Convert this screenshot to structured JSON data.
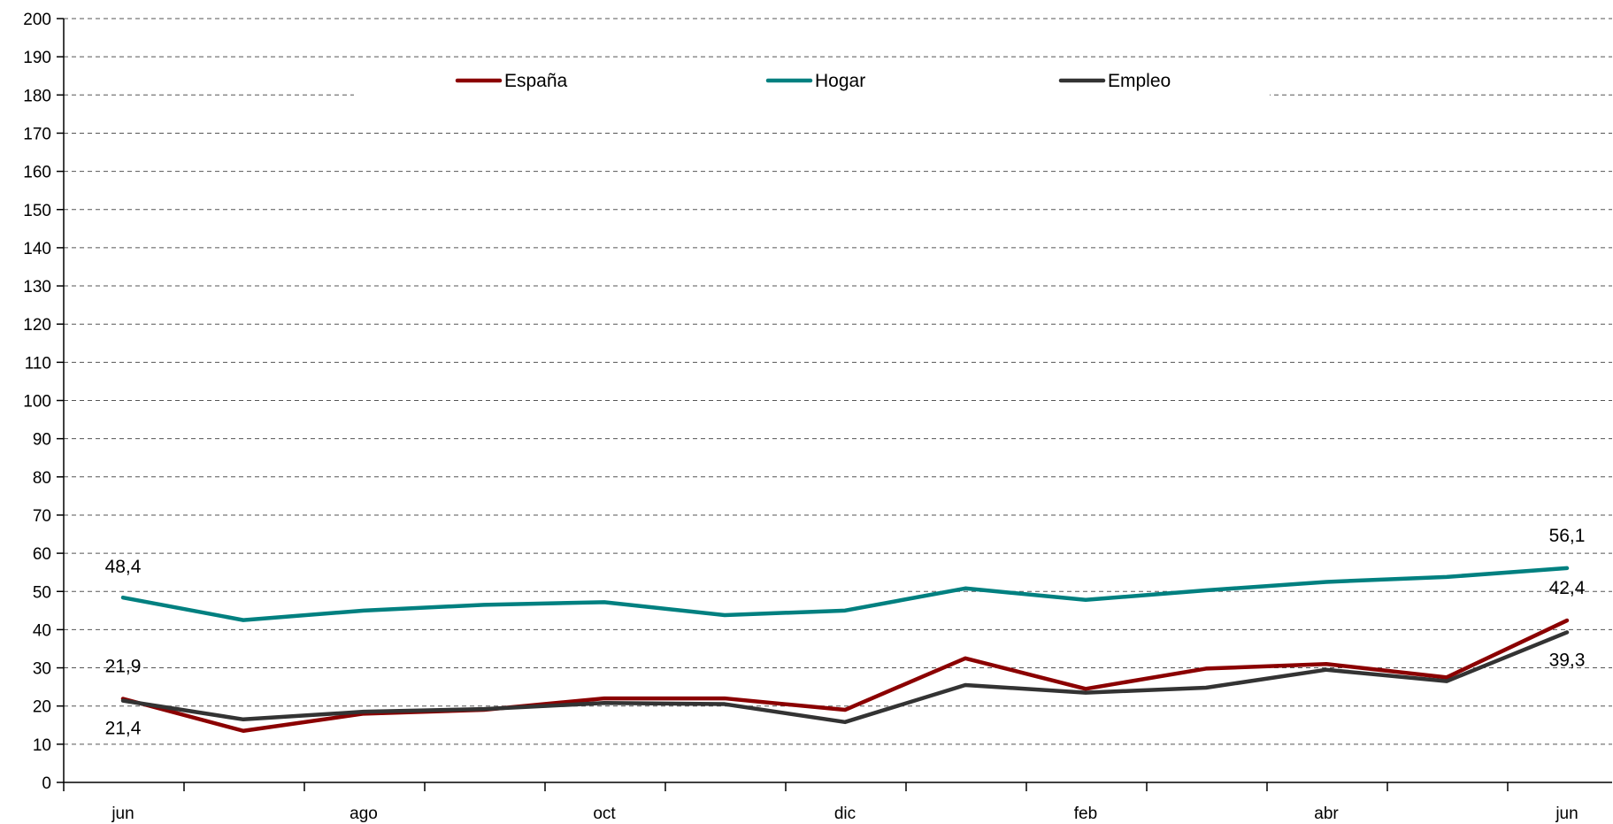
{
  "chart_data": {
    "type": "line",
    "title": "",
    "xlabel": "",
    "ylabel": "",
    "ylim": [
      0,
      200
    ],
    "yticks": [
      0,
      10,
      20,
      30,
      40,
      50,
      60,
      70,
      80,
      90,
      100,
      110,
      120,
      130,
      140,
      150,
      160,
      170,
      180,
      190,
      200
    ],
    "grid": true,
    "legend_position": "top",
    "x_tick_labels": [
      "jun",
      "",
      "ago",
      "",
      "oct",
      "",
      "dic",
      "",
      "feb",
      "",
      "abr",
      "",
      "jun"
    ],
    "series": [
      {
        "name": "España",
        "color": "#8b0000",
        "values": [
          21.9,
          13.5,
          18.0,
          19.0,
          22.0,
          22.0,
          19.0,
          32.5,
          24.5,
          29.8,
          31.0,
          27.5,
          42.4
        ]
      },
      {
        "name": "Hogar",
        "color": "#008080",
        "values": [
          48.4,
          42.5,
          45.0,
          46.5,
          47.2,
          43.8,
          45.0,
          50.8,
          47.8,
          50.3,
          52.5,
          53.8,
          56.1
        ]
      },
      {
        "name": "Empleo",
        "color": "#333333",
        "values": [
          21.4,
          16.5,
          18.5,
          19.2,
          20.8,
          20.5,
          15.8,
          25.5,
          23.5,
          24.8,
          29.5,
          26.5,
          39.3
        ]
      }
    ],
    "annotations": [
      {
        "text": "48,4",
        "x": 0,
        "y": 48.4,
        "series": "Hogar"
      },
      {
        "text": "21,9",
        "x": 0,
        "y": 21.9,
        "series": "España"
      },
      {
        "text": "21,4",
        "x": 0,
        "y": 21.4,
        "series": "Empleo"
      },
      {
        "text": "56,1",
        "x": 12,
        "y": 56.1,
        "series": "Hogar"
      },
      {
        "text": "42,4",
        "x": 12,
        "y": 42.4,
        "series": "España"
      },
      {
        "text": "39,3",
        "x": 12,
        "y": 39.3,
        "series": "Empleo"
      }
    ]
  }
}
